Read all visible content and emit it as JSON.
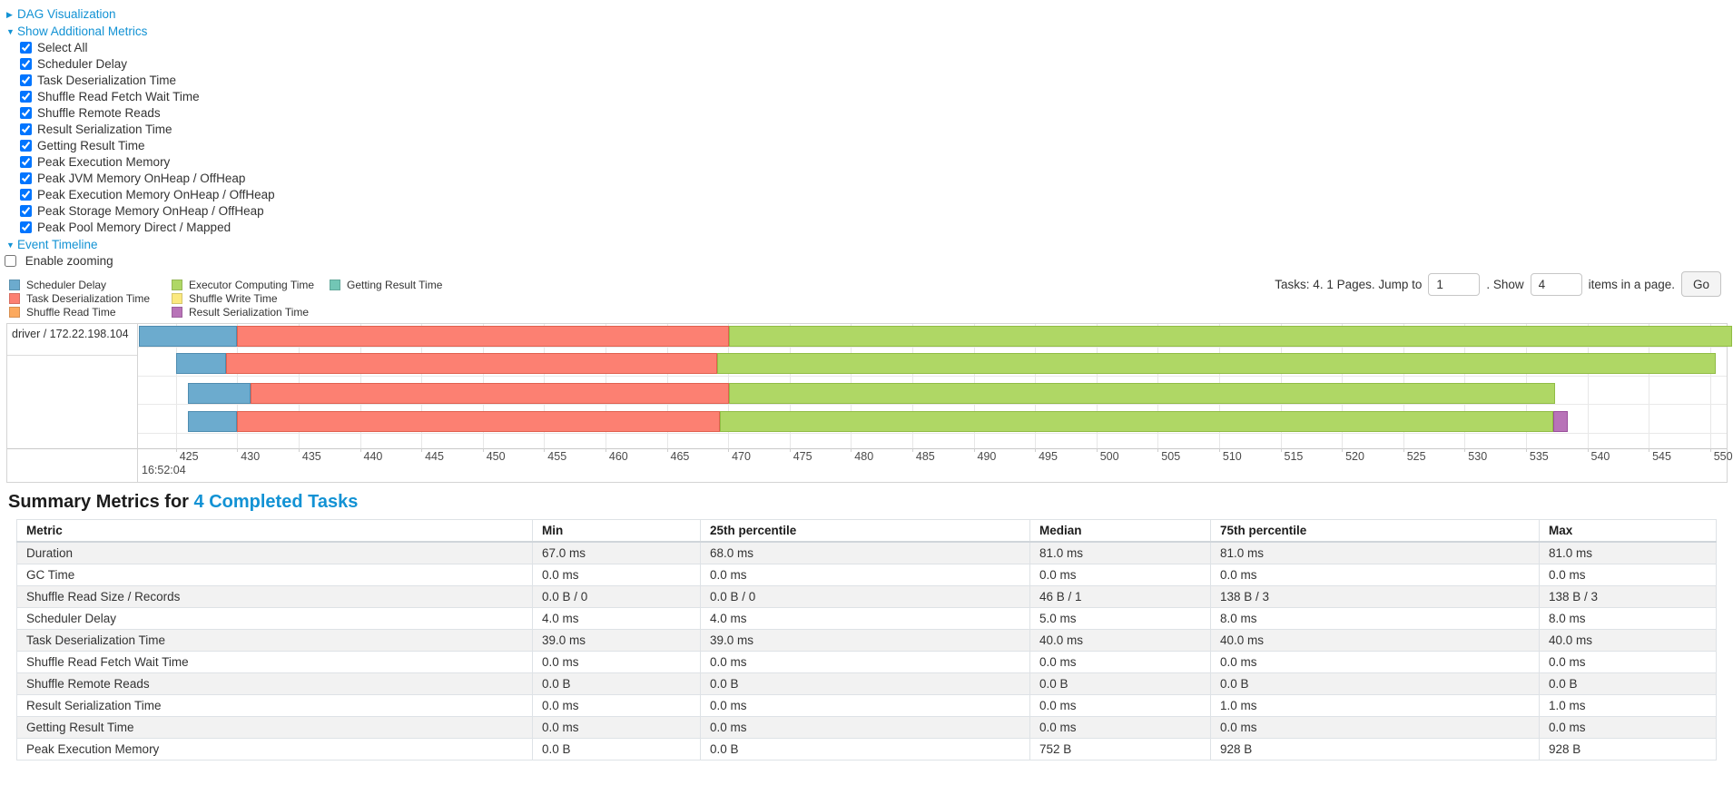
{
  "panel": {
    "dag_label": "DAG Visualization",
    "metrics_label": "Show Additional Metrics",
    "metric_options": [
      "Select All",
      "Scheduler Delay",
      "Task Deserialization Time",
      "Shuffle Read Fetch Wait Time",
      "Shuffle Remote Reads",
      "Result Serialization Time",
      "Getting Result Time",
      "Peak Execution Memory",
      "Peak JVM Memory OnHeap / OffHeap",
      "Peak Execution Memory OnHeap / OffHeap",
      "Peak Storage Memory OnHeap / OffHeap",
      "Peak Pool Memory Direct / Mapped"
    ],
    "event_timeline_label": "Event Timeline",
    "enable_zooming_label": "Enable zooming",
    "enable_zooming_checked": false
  },
  "colors": {
    "link": "#1292d4",
    "scheduler_delay": "#6CABCE",
    "task_deserialization": "#FC8072",
    "shuffle_read": "#FCA95E",
    "executor_computing": "#AFD765",
    "shuffle_write": "#FBE97F",
    "result_serialization": "#B873B8",
    "getting_result": "#72C6B5"
  },
  "segment_borders": {
    "scheduler_delay": "#4E8CB0",
    "task_deserialization": "#E0604F",
    "shuffle_read": "#E08F3F",
    "executor_computing": "#91BC45",
    "shuffle_write": "#E0CC50",
    "result_serialization": "#9A4F9B",
    "getting_result": "#4FA897"
  },
  "legend": {
    "columns": [
      [
        {
          "key": "scheduler_delay",
          "label": "Scheduler Delay"
        },
        {
          "key": "task_deserialization",
          "label": "Task Deserialization Time"
        },
        {
          "key": "shuffle_read",
          "label": "Shuffle Read Time"
        }
      ],
      [
        {
          "key": "executor_computing",
          "label": "Executor Computing Time"
        },
        {
          "key": "shuffle_write",
          "label": "Shuffle Write Time"
        },
        {
          "key": "result_serialization",
          "label": "Result Serialization Time"
        }
      ],
      [
        {
          "key": "getting_result",
          "label": "Getting Result Time"
        }
      ]
    ]
  },
  "pagination": {
    "prefix": "Tasks: 4. 1 Pages. Jump to",
    "jump_value": "1",
    "mid": ". Show",
    "show_value": "4",
    "suffix": "items in a page.",
    "go": "Go"
  },
  "chart_data": {
    "type": "timeline",
    "group_label": "driver / 172.22.198.104",
    "axis": {
      "tick_min": 425,
      "tick_max": 550,
      "tick_step": 5,
      "major_label": "16:52:04"
    },
    "tasks": [
      {
        "segments": [
          {
            "key": "scheduler_delay",
            "from": 422.0,
            "to": 430.0
          },
          {
            "key": "task_deserialization",
            "from": 430.0,
            "to": 470.1
          },
          {
            "key": "executor_computing",
            "from": 470.1,
            "to": 551.8
          }
        ]
      },
      {
        "segments": [
          {
            "key": "scheduler_delay",
            "from": 425.0,
            "to": 429.1
          },
          {
            "key": "task_deserialization",
            "from": 429.1,
            "to": 469.1
          },
          {
            "key": "executor_computing",
            "from": 469.1,
            "to": 550.5
          }
        ]
      },
      {
        "segments": [
          {
            "key": "scheduler_delay",
            "from": 426.0,
            "to": 431.1
          },
          {
            "key": "task_deserialization",
            "from": 431.1,
            "to": 470.1
          },
          {
            "key": "executor_computing",
            "from": 470.1,
            "to": 537.4
          }
        ]
      },
      {
        "segments": [
          {
            "key": "scheduler_delay",
            "from": 426.0,
            "to": 430.0
          },
          {
            "key": "task_deserialization",
            "from": 430.0,
            "to": 469.3
          },
          {
            "key": "executor_computing",
            "from": 469.3,
            "to": 537.2
          },
          {
            "key": "result_serialization",
            "from": 537.2,
            "to": 538.4
          }
        ]
      }
    ]
  },
  "summary": {
    "title_prefix": "Summary Metrics for",
    "title_link": "4 Completed Tasks",
    "headers": [
      "Metric",
      "Min",
      "25th percentile",
      "Median",
      "75th percentile",
      "Max"
    ],
    "rows": [
      [
        "Duration",
        "67.0 ms",
        "68.0 ms",
        "81.0 ms",
        "81.0 ms",
        "81.0 ms"
      ],
      [
        "GC Time",
        "0.0 ms",
        "0.0 ms",
        "0.0 ms",
        "0.0 ms",
        "0.0 ms"
      ],
      [
        "Shuffle Read Size / Records",
        "0.0 B / 0",
        "0.0 B / 0",
        "46 B / 1",
        "138 B / 3",
        "138 B / 3"
      ],
      [
        "Scheduler Delay",
        "4.0 ms",
        "4.0 ms",
        "5.0 ms",
        "8.0 ms",
        "8.0 ms"
      ],
      [
        "Task Deserialization Time",
        "39.0 ms",
        "39.0 ms",
        "40.0 ms",
        "40.0 ms",
        "40.0 ms"
      ],
      [
        "Shuffle Read Fetch Wait Time",
        "0.0 ms",
        "0.0 ms",
        "0.0 ms",
        "0.0 ms",
        "0.0 ms"
      ],
      [
        "Shuffle Remote Reads",
        "0.0 B",
        "0.0 B",
        "0.0 B",
        "0.0 B",
        "0.0 B"
      ],
      [
        "Result Serialization Time",
        "0.0 ms",
        "0.0 ms",
        "0.0 ms",
        "1.0 ms",
        "1.0 ms"
      ],
      [
        "Getting Result Time",
        "0.0 ms",
        "0.0 ms",
        "0.0 ms",
        "0.0 ms",
        "0.0 ms"
      ],
      [
        "Peak Execution Memory",
        "0.0 B",
        "0.0 B",
        "752 B",
        "928 B",
        "928 B"
      ]
    ]
  }
}
